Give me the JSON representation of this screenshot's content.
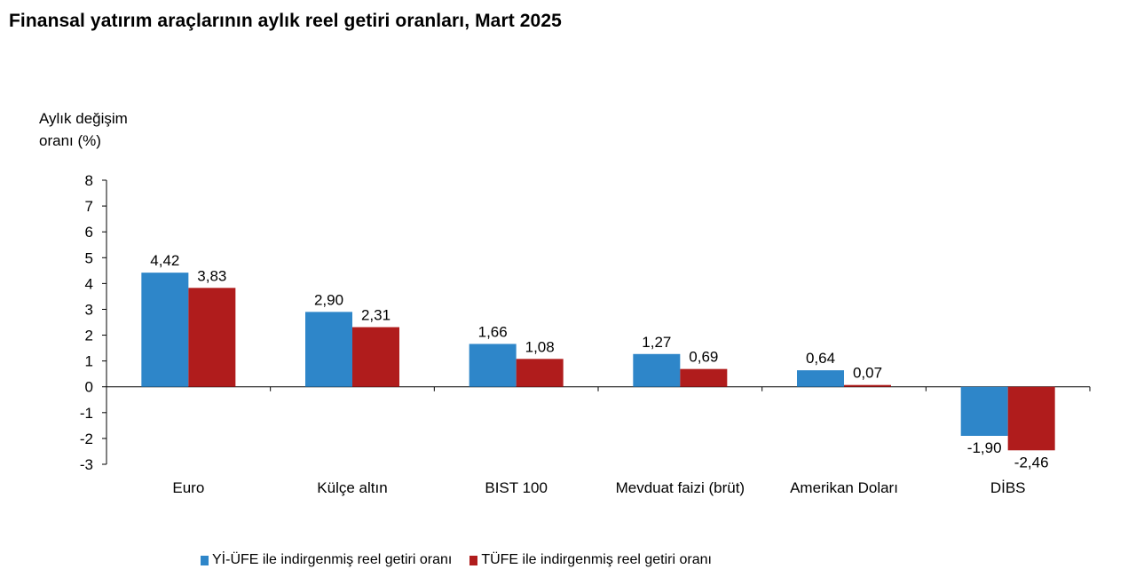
{
  "chart_data": {
    "type": "bar",
    "title": "Finansal yatırım araçlarının aylık reel getiri oranları, Mart 2025",
    "ylabel_lines": [
      "Aylık değişim",
      "oranı (%)"
    ],
    "xlabel": "",
    "ylim": [
      -3,
      8
    ],
    "yticks": [
      -3,
      -2,
      -1,
      0,
      1,
      2,
      3,
      4,
      5,
      6,
      7,
      8
    ],
    "categories": [
      "Euro",
      "Külçe altın",
      "BIST 100",
      "Mevduat faizi (brüt)",
      "Amerikan Doları",
      "DİBS"
    ],
    "series": [
      {
        "name": "Yİ-ÜFE ile indirgenmiş reel getiri oranı",
        "color": "#2e86c9",
        "values": [
          4.42,
          2.9,
          1.66,
          1.27,
          0.64,
          -1.9
        ],
        "labels": [
          "4,42",
          "2,90",
          "1,66",
          "1,27",
          "0,64",
          "-1,90"
        ]
      },
      {
        "name": "TÜFE ile indirgenmiş reel getiri oranı",
        "color": "#b01c1c",
        "values": [
          3.83,
          2.31,
          1.08,
          0.69,
          0.07,
          -2.46
        ],
        "labels": [
          "3,83",
          "2,31",
          "1,08",
          "0,69",
          "0,07",
          "-2,46"
        ]
      }
    ],
    "grid": false,
    "legend_position": "bottom"
  }
}
